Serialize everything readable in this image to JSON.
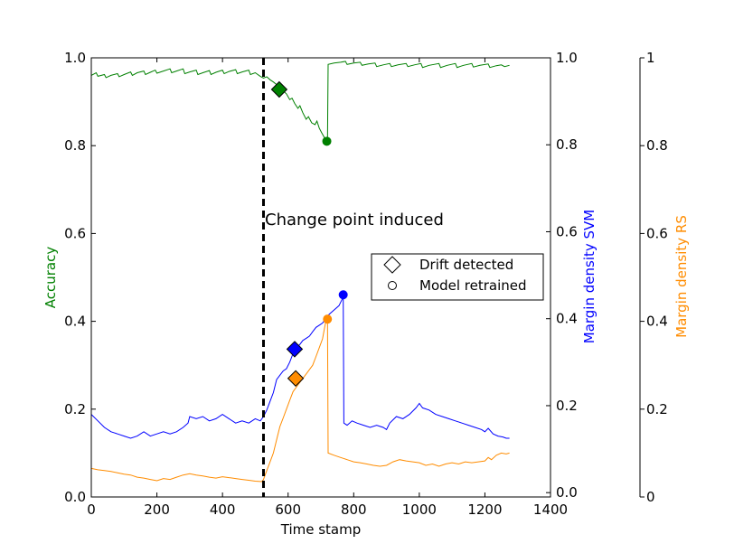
{
  "chart_data": {
    "type": "line",
    "x_axis": {
      "label": "Time stamp",
      "lim": [
        0,
        1400
      ],
      "ticks": [
        0,
        200,
        400,
        600,
        800,
        1000,
        1200,
        1400
      ],
      "tick_labels": [
        "0",
        "200",
        "400",
        "600",
        "800",
        "1000",
        "1200",
        "1400"
      ]
    },
    "y_axes": [
      {
        "id": "accuracy",
        "label": "Accuracy",
        "color": "#008000",
        "lim": [
          0,
          1.0
        ],
        "ticks": [
          0,
          0.2,
          0.4,
          0.6,
          0.8,
          1.0
        ],
        "tick_labels": [
          "0.0",
          "0.2",
          "0.4",
          "0.6",
          "0.8",
          "1.0"
        ]
      },
      {
        "id": "margin_svm",
        "label": "Margin density SVM",
        "color": "#0000ff",
        "lim": [
          -0.01,
          1.0
        ],
        "ticks": [
          0,
          0.2,
          0.4,
          0.6,
          0.8,
          1.0
        ],
        "tick_labels": [
          "0.0",
          "0.2",
          "0.4",
          "0.6",
          "0.8",
          "1.0"
        ]
      },
      {
        "id": "margin_rs",
        "label": "Margin density RS",
        "color": "#ff8c00",
        "lim": [
          0,
          1.0
        ],
        "ticks": [
          0,
          0.2,
          0.4,
          0.6,
          0.8,
          1.0
        ],
        "tick_labels": [
          "0",
          "0.2",
          "0.4",
          "0.6",
          "0.8",
          "1"
        ]
      }
    ],
    "series": [
      {
        "name": "Accuracy",
        "axis": "accuracy",
        "color": "#008000",
        "points": [
          [
            0,
            0.96
          ],
          [
            15,
            0.966
          ],
          [
            20,
            0.958
          ],
          [
            40,
            0.962
          ],
          [
            45,
            0.955
          ],
          [
            60,
            0.96
          ],
          [
            80,
            0.964
          ],
          [
            85,
            0.957
          ],
          [
            100,
            0.962
          ],
          [
            120,
            0.968
          ],
          [
            125,
            0.96
          ],
          [
            140,
            0.966
          ],
          [
            160,
            0.97
          ],
          [
            165,
            0.962
          ],
          [
            180,
            0.967
          ],
          [
            195,
            0.972
          ],
          [
            200,
            0.965
          ],
          [
            220,
            0.97
          ],
          [
            240,
            0.975
          ],
          [
            245,
            0.966
          ],
          [
            260,
            0.97
          ],
          [
            280,
            0.975
          ],
          [
            285,
            0.964
          ],
          [
            300,
            0.968
          ],
          [
            320,
            0.972
          ],
          [
            325,
            0.962
          ],
          [
            340,
            0.966
          ],
          [
            360,
            0.971
          ],
          [
            365,
            0.962
          ],
          [
            380,
            0.967
          ],
          [
            400,
            0.972
          ],
          [
            405,
            0.964
          ],
          [
            420,
            0.969
          ],
          [
            440,
            0.973
          ],
          [
            445,
            0.964
          ],
          [
            460,
            0.968
          ],
          [
            480,
            0.972
          ],
          [
            485,
            0.962
          ],
          [
            500,
            0.966
          ],
          [
            515,
            0.958
          ],
          [
            525,
            0.954
          ],
          [
            535,
            0.957
          ],
          [
            545,
            0.95
          ],
          [
            555,
            0.945
          ],
          [
            570,
            0.936
          ],
          [
            580,
            0.928
          ],
          [
            595,
            0.918
          ],
          [
            605,
            0.905
          ],
          [
            612,
            0.908
          ],
          [
            620,
            0.896
          ],
          [
            630,
            0.885
          ],
          [
            636,
            0.891
          ],
          [
            645,
            0.875
          ],
          [
            655,
            0.86
          ],
          [
            662,
            0.866
          ],
          [
            672,
            0.852
          ],
          [
            682,
            0.848
          ],
          [
            688,
            0.856
          ],
          [
            695,
            0.84
          ],
          [
            702,
            0.83
          ],
          [
            708,
            0.822
          ],
          [
            715,
            0.812
          ],
          [
            720,
            0.81
          ],
          [
            722,
            0.985
          ],
          [
            740,
            0.988
          ],
          [
            760,
            0.99
          ],
          [
            775,
            0.992
          ],
          [
            780,
            0.985
          ],
          [
            800,
            0.988
          ],
          [
            820,
            0.99
          ],
          [
            825,
            0.983
          ],
          [
            845,
            0.986
          ],
          [
            865,
            0.988
          ],
          [
            870,
            0.98
          ],
          [
            890,
            0.984
          ],
          [
            910,
            0.987
          ],
          [
            915,
            0.98
          ],
          [
            935,
            0.984
          ],
          [
            960,
            0.987
          ],
          [
            965,
            0.98
          ],
          [
            985,
            0.984
          ],
          [
            1005,
            0.987
          ],
          [
            1010,
            0.978
          ],
          [
            1030,
            0.983
          ],
          [
            1060,
            0.987
          ],
          [
            1065,
            0.978
          ],
          [
            1085,
            0.983
          ],
          [
            1110,
            0.987
          ],
          [
            1115,
            0.978
          ],
          [
            1135,
            0.983
          ],
          [
            1160,
            0.987
          ],
          [
            1165,
            0.979
          ],
          [
            1185,
            0.983
          ],
          [
            1210,
            0.986
          ],
          [
            1215,
            0.978
          ],
          [
            1235,
            0.982
          ],
          [
            1250,
            0.984
          ],
          [
            1260,
            0.98
          ],
          [
            1275,
            0.983
          ]
        ]
      },
      {
        "name": "Margin density SVM",
        "axis": "margin_svm",
        "color": "#0000ff",
        "points": [
          [
            0,
            0.18
          ],
          [
            20,
            0.165
          ],
          [
            40,
            0.15
          ],
          [
            60,
            0.14
          ],
          [
            80,
            0.135
          ],
          [
            100,
            0.13
          ],
          [
            120,
            0.125
          ],
          [
            140,
            0.13
          ],
          [
            160,
            0.14
          ],
          [
            180,
            0.13
          ],
          [
            200,
            0.135
          ],
          [
            220,
            0.14
          ],
          [
            240,
            0.135
          ],
          [
            260,
            0.14
          ],
          [
            280,
            0.15
          ],
          [
            295,
            0.16
          ],
          [
            300,
            0.175
          ],
          [
            320,
            0.17
          ],
          [
            340,
            0.175
          ],
          [
            360,
            0.165
          ],
          [
            380,
            0.17
          ],
          [
            400,
            0.18
          ],
          [
            420,
            0.17
          ],
          [
            440,
            0.16
          ],
          [
            460,
            0.165
          ],
          [
            480,
            0.16
          ],
          [
            500,
            0.17
          ],
          [
            515,
            0.165
          ],
          [
            525,
            0.175
          ],
          [
            535,
            0.19
          ],
          [
            545,
            0.21
          ],
          [
            555,
            0.23
          ],
          [
            565,
            0.26
          ],
          [
            575,
            0.27
          ],
          [
            585,
            0.28
          ],
          [
            595,
            0.285
          ],
          [
            605,
            0.3
          ],
          [
            615,
            0.32
          ],
          [
            625,
            0.335
          ],
          [
            635,
            0.34
          ],
          [
            645,
            0.35
          ],
          [
            655,
            0.355
          ],
          [
            665,
            0.36
          ],
          [
            675,
            0.37
          ],
          [
            685,
            0.38
          ],
          [
            695,
            0.385
          ],
          [
            705,
            0.39
          ],
          [
            715,
            0.4
          ],
          [
            725,
            0.41
          ],
          [
            740,
            0.42
          ],
          [
            755,
            0.43
          ],
          [
            768,
            0.45
          ],
          [
            770,
            0.16
          ],
          [
            780,
            0.155
          ],
          [
            795,
            0.165
          ],
          [
            810,
            0.16
          ],
          [
            830,
            0.155
          ],
          [
            850,
            0.15
          ],
          [
            870,
            0.155
          ],
          [
            890,
            0.15
          ],
          [
            900,
            0.145
          ],
          [
            910,
            0.16
          ],
          [
            930,
            0.175
          ],
          [
            950,
            0.17
          ],
          [
            970,
            0.18
          ],
          [
            990,
            0.195
          ],
          [
            1000,
            0.205
          ],
          [
            1010,
            0.195
          ],
          [
            1030,
            0.19
          ],
          [
            1050,
            0.18
          ],
          [
            1070,
            0.175
          ],
          [
            1090,
            0.17
          ],
          [
            1110,
            0.165
          ],
          [
            1130,
            0.16
          ],
          [
            1150,
            0.155
          ],
          [
            1170,
            0.15
          ],
          [
            1190,
            0.145
          ],
          [
            1200,
            0.14
          ],
          [
            1210,
            0.148
          ],
          [
            1225,
            0.135
          ],
          [
            1240,
            0.13
          ],
          [
            1255,
            0.128
          ],
          [
            1265,
            0.125
          ],
          [
            1275,
            0.125
          ]
        ]
      },
      {
        "name": "Margin density RS",
        "axis": "margin_rs",
        "color": "#ff8c00",
        "points": [
          [
            0,
            0.065
          ],
          [
            20,
            0.062
          ],
          [
            40,
            0.06
          ],
          [
            60,
            0.058
          ],
          [
            80,
            0.055
          ],
          [
            100,
            0.052
          ],
          [
            120,
            0.05
          ],
          [
            140,
            0.045
          ],
          [
            160,
            0.043
          ],
          [
            180,
            0.04
          ],
          [
            200,
            0.037
          ],
          [
            220,
            0.042
          ],
          [
            240,
            0.04
          ],
          [
            260,
            0.045
          ],
          [
            280,
            0.05
          ],
          [
            300,
            0.053
          ],
          [
            320,
            0.05
          ],
          [
            340,
            0.048
          ],
          [
            360,
            0.045
          ],
          [
            380,
            0.043
          ],
          [
            400,
            0.046
          ],
          [
            420,
            0.044
          ],
          [
            440,
            0.042
          ],
          [
            460,
            0.04
          ],
          [
            480,
            0.038
          ],
          [
            500,
            0.036
          ],
          [
            520,
            0.035
          ],
          [
            525,
            0.04
          ],
          [
            535,
            0.06
          ],
          [
            545,
            0.08
          ],
          [
            555,
            0.1
          ],
          [
            565,
            0.13
          ],
          [
            575,
            0.16
          ],
          [
            585,
            0.18
          ],
          [
            595,
            0.2
          ],
          [
            605,
            0.22
          ],
          [
            615,
            0.24
          ],
          [
            625,
            0.25
          ],
          [
            635,
            0.26
          ],
          [
            645,
            0.27
          ],
          [
            655,
            0.28
          ],
          [
            665,
            0.29
          ],
          [
            675,
            0.3
          ],
          [
            685,
            0.32
          ],
          [
            695,
            0.34
          ],
          [
            705,
            0.36
          ],
          [
            715,
            0.4
          ],
          [
            720,
            0.405
          ],
          [
            722,
            0.1
          ],
          [
            740,
            0.095
          ],
          [
            760,
            0.09
          ],
          [
            780,
            0.085
          ],
          [
            800,
            0.08
          ],
          [
            820,
            0.078
          ],
          [
            840,
            0.075
          ],
          [
            860,
            0.072
          ],
          [
            880,
            0.07
          ],
          [
            900,
            0.072
          ],
          [
            920,
            0.08
          ],
          [
            940,
            0.085
          ],
          [
            960,
            0.082
          ],
          [
            980,
            0.08
          ],
          [
            1000,
            0.078
          ],
          [
            1020,
            0.072
          ],
          [
            1040,
            0.075
          ],
          [
            1060,
            0.07
          ],
          [
            1080,
            0.075
          ],
          [
            1100,
            0.078
          ],
          [
            1120,
            0.075
          ],
          [
            1140,
            0.08
          ],
          [
            1160,
            0.078
          ],
          [
            1180,
            0.08
          ],
          [
            1200,
            0.082
          ],
          [
            1210,
            0.09
          ],
          [
            1220,
            0.085
          ],
          [
            1235,
            0.095
          ],
          [
            1250,
            0.1
          ],
          [
            1265,
            0.098
          ],
          [
            1275,
            0.1
          ]
        ]
      }
    ],
    "markers": [
      {
        "series": "Accuracy",
        "kind": "drift",
        "x": 573,
        "y": 0.928
      },
      {
        "series": "Accuracy",
        "kind": "retrain",
        "x": 718,
        "y": 0.81
      },
      {
        "series": "Margin density SVM",
        "kind": "drift",
        "x": 620,
        "y": 0.33
      },
      {
        "series": "Margin density SVM",
        "kind": "retrain",
        "x": 768,
        "y": 0.455
      },
      {
        "series": "Margin density RS",
        "kind": "drift",
        "x": 623,
        "y": 0.27
      },
      {
        "series": "Margin density RS",
        "kind": "retrain",
        "x": 720,
        "y": 0.405
      }
    ],
    "change_point": {
      "x": 525,
      "label": "Change point induced"
    },
    "legend": {
      "position": "center-right",
      "entries": [
        {
          "kind": "drift",
          "label": "Drift detected"
        },
        {
          "kind": "retrain",
          "label": "Model retrained"
        }
      ]
    }
  }
}
